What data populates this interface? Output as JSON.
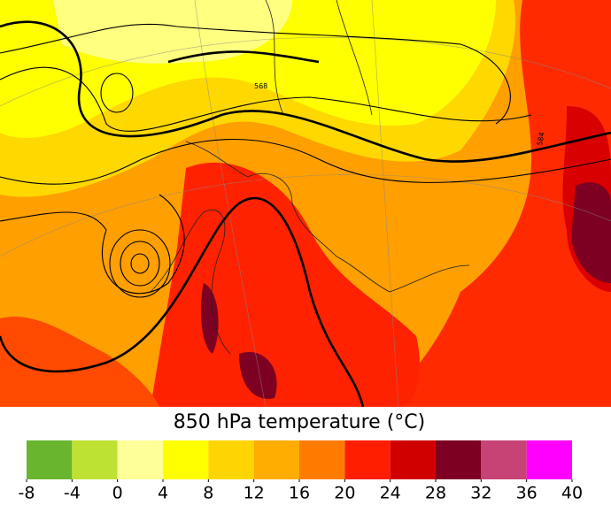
{
  "title": "850 hPa temperature (°C)",
  "map": {
    "contour_labels": [
      "568",
      "584"
    ]
  },
  "colorbar": {
    "ticks": [
      -8,
      -4,
      0,
      4,
      8,
      12,
      16,
      20,
      24,
      28,
      32,
      36,
      40
    ],
    "colors": [
      "#69b62e",
      "#bde233",
      "#ffff99",
      "#ffff00",
      "#ffd500",
      "#ffad00",
      "#ff7c00",
      "#ff1e00",
      "#d10000",
      "#7d0022",
      "#c74375",
      "#ff00ff"
    ]
  }
}
